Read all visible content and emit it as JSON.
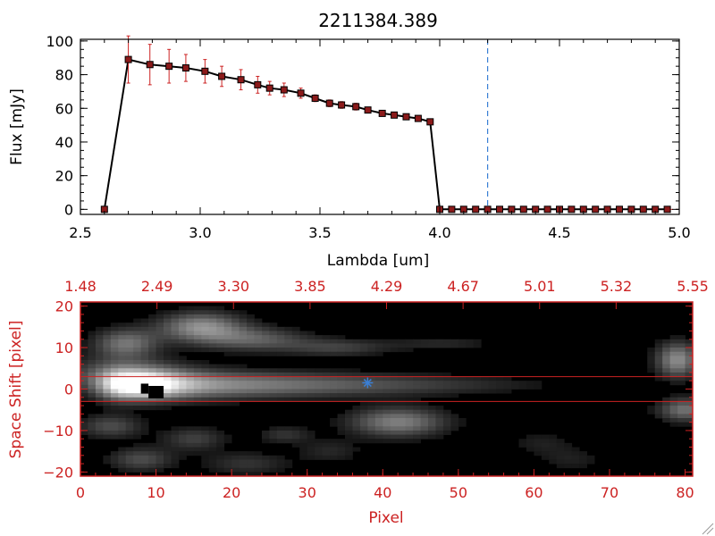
{
  "figure_title": "2211384.389",
  "chart_data": [
    {
      "type": "line",
      "title": "2211384.389",
      "xlabel": "Lambda [um]",
      "ylabel": "Flux [mJy]",
      "xlim": [
        2.5,
        5.0
      ],
      "ylim": [
        -3,
        101
      ],
      "x_ticks": [
        2.5,
        3.0,
        3.5,
        4.0,
        4.5,
        5.0
      ],
      "x_tick_labels": [
        "2.5",
        "3.0",
        "3.5",
        "4.0",
        "4.5",
        "5.0"
      ],
      "y_ticks": [
        0,
        20,
        40,
        60,
        80,
        100
      ],
      "y_tick_labels": [
        "0",
        "20",
        "40",
        "60",
        "80",
        "100"
      ],
      "reference_line_x": 4.2,
      "reference_line_color": "#3a7fd5",
      "series": [
        {
          "marker": "square",
          "line_color": "#000000",
          "marker_color": "#8b1a1a",
          "error_color": "#cc2222",
          "x": [
            2.6,
            2.7,
            2.79,
            2.87,
            2.94,
            3.02,
            3.09,
            3.17,
            3.24,
            3.29,
            3.35,
            3.42,
            3.48,
            3.54,
            3.59,
            3.65,
            3.7,
            3.76,
            3.81,
            3.86,
            3.91,
            3.96,
            4.0,
            4.05,
            4.1,
            4.15,
            4.2,
            4.25,
            4.3,
            4.35,
            4.4,
            4.45,
            4.5,
            4.55,
            4.6,
            4.65,
            4.7,
            4.75,
            4.8,
            4.85,
            4.9,
            4.95
          ],
          "y": [
            0,
            89,
            86,
            85,
            84,
            82,
            79,
            77,
            74,
            72,
            71,
            69,
            66,
            63,
            62,
            61,
            59,
            57,
            56,
            55,
            54,
            52,
            0,
            0,
            0,
            0,
            0,
            0,
            0,
            0,
            0,
            0,
            0,
            0,
            0,
            0,
            0,
            0,
            0,
            0,
            0,
            0
          ],
          "err": [
            0,
            14,
            12,
            10,
            8,
            7,
            6,
            6,
            5,
            4,
            4,
            3,
            2,
            2,
            2,
            2,
            1,
            1,
            1,
            1,
            1,
            1,
            0,
            0,
            0,
            0,
            0,
            0,
            0,
            0,
            0,
            0,
            0,
            0,
            0,
            0,
            0,
            0,
            0,
            0,
            0,
            0
          ]
        }
      ]
    },
    {
      "type": "heatmap",
      "xlabel": "Pixel",
      "ylabel": "Space Shift [pixel]",
      "xlim": [
        0,
        81
      ],
      "ylim": [
        -21,
        21
      ],
      "x_ticks": [
        0,
        10,
        20,
        30,
        40,
        50,
        60,
        70,
        80
      ],
      "x_tick_labels": [
        "0",
        "10",
        "20",
        "30",
        "40",
        "50",
        "60",
        "70",
        "80"
      ],
      "y_ticks": [
        -20,
        -10,
        0,
        10,
        20
      ],
      "y_tick_labels": [
        "−20",
        "−10",
        "0",
        "10",
        "20"
      ],
      "top_axis_tick_labels": [
        "1.48",
        "2.49",
        "3.30",
        "3.85",
        "4.29",
        "4.67",
        "5.01",
        "5.32",
        "5.55"
      ],
      "axis_color": "#cc2222",
      "colormap": "grayscale",
      "aperture_lines_y": [
        3,
        -3
      ],
      "star_marker": {
        "x": 38,
        "y": 1.5,
        "color": "#3a7fd5"
      },
      "blobs": [
        {
          "x": 6,
          "y": 1,
          "sx": 14,
          "sy": 2.6,
          "amp": 0.7,
          "kind": "trace"
        },
        {
          "x": 8,
          "y": 1,
          "sx": 4,
          "sy": 2.6,
          "amp": 0.35
        },
        {
          "x": 9,
          "y": 1,
          "sx": 1.5,
          "sy": 1.2,
          "amp": 0.4
        },
        {
          "x": 5,
          "y": 3.5,
          "sx": 6,
          "sy": 3,
          "amp": 0.3
        },
        {
          "x": 16,
          "y": 15,
          "sx": 4,
          "sy": 2.5,
          "amp": 0.55
        },
        {
          "x": 6,
          "y": 11,
          "sx": 3,
          "sy": 2.5,
          "amp": 0.45
        },
        {
          "x": 23,
          "y": 12,
          "sx": 5,
          "sy": 2,
          "amp": 0.35
        },
        {
          "x": 34,
          "y": 10,
          "sx": 5,
          "sy": 1.5,
          "amp": 0.25
        },
        {
          "x": 48,
          "y": 11,
          "sx": 5,
          "sy": 1.2,
          "amp": 0.15
        },
        {
          "x": 42,
          "y": -8,
          "sx": 4.5,
          "sy": 2.5,
          "amp": 0.5
        },
        {
          "x": 79,
          "y": 7,
          "sx": 2,
          "sy": 3,
          "amp": 0.55
        },
        {
          "x": 80,
          "y": -5,
          "sx": 2.5,
          "sy": 2,
          "amp": 0.45
        },
        {
          "x": 4,
          "y": -9,
          "sx": 3,
          "sy": 2,
          "amp": 0.3
        },
        {
          "x": 8,
          "y": -17,
          "sx": 3,
          "sy": 2,
          "amp": 0.3
        },
        {
          "x": 15,
          "y": -12,
          "sx": 3,
          "sy": 2,
          "amp": 0.25
        },
        {
          "x": 22,
          "y": -18,
          "sx": 4,
          "sy": 2,
          "amp": 0.2
        },
        {
          "x": 27,
          "y": -11,
          "sx": 2.5,
          "sy": 1.5,
          "amp": 0.2
        },
        {
          "x": 33,
          "y": -15,
          "sx": 3,
          "sy": 2,
          "amp": 0.15
        },
        {
          "x": 61,
          "y": -13,
          "sx": 3,
          "sy": 2,
          "amp": 0.12
        },
        {
          "x": 65,
          "y": -17,
          "sx": 3,
          "sy": 2,
          "amp": 0.12
        }
      ],
      "dark_spots": [
        {
          "x": 9,
          "y": 0,
          "w": 2,
          "h": 1.5
        },
        {
          "x": 8,
          "y": 0.7,
          "w": 1,
          "h": 1.2
        }
      ]
    }
  ]
}
